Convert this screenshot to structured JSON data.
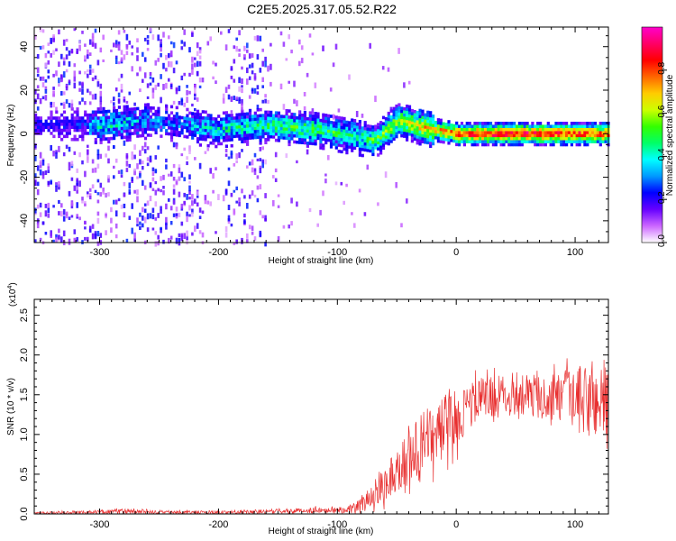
{
  "title": "C2E5.2025.317.05.52.R22",
  "chart_data": [
    {
      "type": "heatmap",
      "title": "C2E5.2025.317.05.52.R22",
      "xlabel": "Height of straight line (km)",
      "ylabel": "Frequency (Hz)",
      "xlim": [
        -355,
        128
      ],
      "ylim": [
        -50,
        49
      ],
      "xticks": [
        -300,
        -200,
        -100,
        0,
        100
      ],
      "yticks": [
        -40,
        -20,
        0,
        20,
        40
      ],
      "colorbar": {
        "label": "Normalized spectral amplitude",
        "range": [
          0,
          1
        ],
        "ticks": [
          "0.0",
          "0.2",
          "0.4",
          "0.6",
          "0.8"
        ],
        "colors": [
          "#ffffff",
          "#cc66ff",
          "#6600ff",
          "#0000ff",
          "#0099ff",
          "#00ffff",
          "#00ff66",
          "#33ff00",
          "#ccff00",
          "#ffcc00",
          "#ff6600",
          "#ff0000",
          "#ff0066",
          "#ff00cc"
        ]
      },
      "ridge": {
        "height_km": [
          -330,
          -300,
          -280,
          -260,
          -240,
          -220,
          -200,
          -180,
          -160,
          -140,
          -120,
          -100,
          -80,
          -70,
          -60,
          -50,
          -40,
          -30,
          -20,
          -10,
          0,
          20,
          40,
          60,
          80,
          100,
          128
        ],
        "frequency_hz": [
          4,
          4,
          5,
          6,
          5,
          3,
          2,
          3,
          4,
          3,
          2,
          0,
          -2,
          -3,
          1,
          6,
          5,
          3,
          2,
          1,
          0,
          0,
          0,
          0,
          0,
          0,
          0
        ],
        "amplitude": [
          0.35,
          0.4,
          0.38,
          0.3,
          0.25,
          0.35,
          0.4,
          0.42,
          0.45,
          0.48,
          0.5,
          0.48,
          0.45,
          0.5,
          0.55,
          0.6,
          0.65,
          0.7,
          0.75,
          0.8,
          0.88,
          0.92,
          0.95,
          0.95,
          0.92,
          0.9,
          0.85
        ]
      }
    },
    {
      "type": "line",
      "xlabel": "Height of straight line (km)",
      "ylabel": "SNR (10 * v/v)",
      "y_multiplier": "(x10",
      "y_multiplier_exp": "4",
      "y_multiplier_close": ")",
      "xlim": [
        -355,
        128
      ],
      "ylim": [
        0,
        2.7
      ],
      "xticks": [
        -300,
        -200,
        -100,
        0,
        100
      ],
      "yticks": [
        "0.0",
        "0.5",
        "1.0",
        "1.5",
        "2.0",
        "2.5"
      ],
      "color": "#e83030",
      "envelope": {
        "x": [
          -355,
          -320,
          -280,
          -240,
          -200,
          -160,
          -130,
          -110,
          -90,
          -80,
          -70,
          -60,
          -50,
          -40,
          -30,
          -20,
          -10,
          0,
          10,
          20,
          40,
          60,
          80,
          100,
          115,
          128
        ],
        "mean": [
          0.01,
          0.02,
          0.03,
          0.02,
          0.02,
          0.03,
          0.04,
          0.05,
          0.06,
          0.1,
          0.25,
          0.4,
          0.55,
          0.7,
          0.85,
          1.0,
          1.1,
          1.2,
          1.35,
          1.45,
          1.5,
          1.5,
          1.45,
          1.45,
          1.4,
          1.5
        ],
        "spread": [
          0.01,
          0.02,
          0.03,
          0.02,
          0.02,
          0.03,
          0.03,
          0.04,
          0.05,
          0.1,
          0.15,
          0.25,
          0.3,
          0.35,
          0.4,
          0.4,
          0.4,
          0.35,
          0.3,
          0.28,
          0.25,
          0.25,
          0.3,
          0.4,
          0.5,
          0.6
        ]
      }
    }
  ]
}
